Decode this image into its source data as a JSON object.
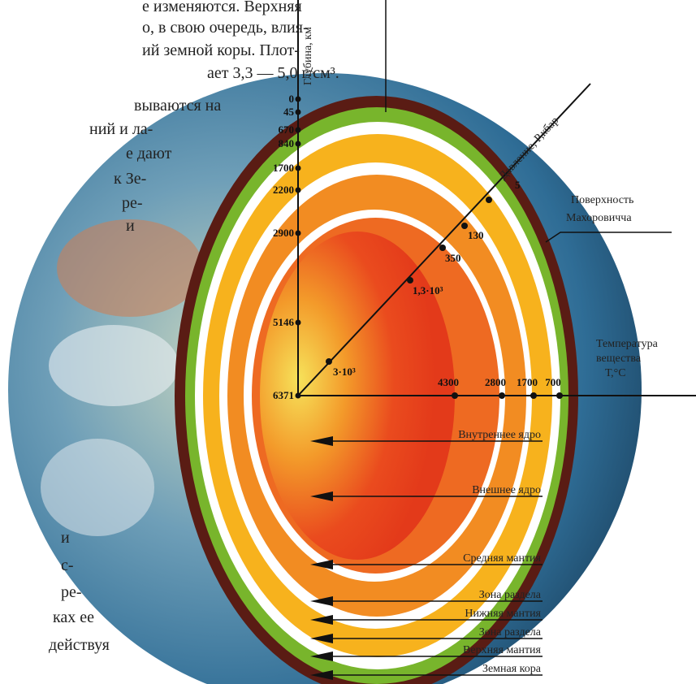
{
  "text_top": [
    "е изменяются. Верхняя",
    "о, в свою очередь, влия-",
    "ий земной коры. Плот-",
    "ает 3,3 — 5,0 г/см³.",
    "вываются на",
    "ний и ла-",
    "е дают",
    "к Зе-",
    "ре-",
    "и"
  ],
  "text_bottom": [
    "и",
    "с-",
    "ре-",
    "ках ее",
    "действуя"
  ],
  "depth_axis": {
    "title": "Глубина, км",
    "labels": [
      "0",
      "45",
      "670",
      "840",
      "1700",
      "2200",
      "2900",
      "5146",
      "6371"
    ]
  },
  "pressure_axis": {
    "title": "Давление, P,кбар",
    "labels": [
      "5",
      "130",
      "350",
      "1,3·10³",
      "3·10³"
    ]
  },
  "temperature_axis": {
    "title": [
      "Температура",
      "вещества",
      "Т,°С"
    ],
    "labels": [
      "4300",
      "2800",
      "1700",
      "700"
    ]
  },
  "moho": [
    "Поверхность",
    "Махоровичча"
  ],
  "layers": [
    "Внутреннее ядро",
    "Внешнее ядро",
    "Средняя мантия",
    "Зона раздела",
    "Нижняя мантия",
    "Зона раздела",
    "Верхняя мантия",
    "Земная кора"
  ]
}
